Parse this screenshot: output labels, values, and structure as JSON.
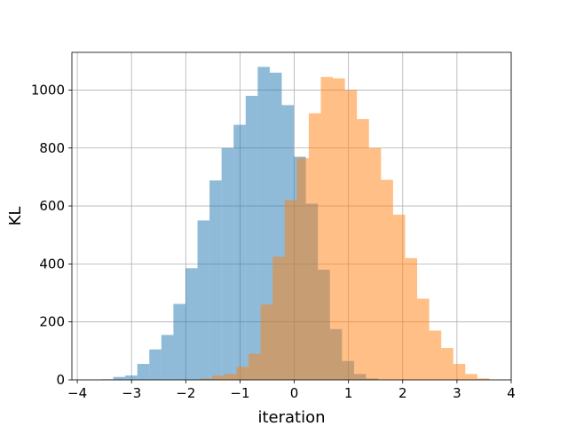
{
  "chart_data": {
    "type": "bar",
    "xlabel": "iteration",
    "ylabel": "KL",
    "xlim": [
      -4.1,
      4.0
    ],
    "ylim": [
      0,
      1130
    ],
    "grid": true,
    "x_ticks": [
      -4,
      -3,
      -2,
      -1,
      0,
      1,
      2,
      3,
      4
    ],
    "y_ticks": [
      0,
      200,
      400,
      600,
      800,
      1000
    ],
    "x_tick_labels": [
      "−4",
      "−3",
      "−2",
      "−1",
      "0",
      "1",
      "2",
      "3",
      "4"
    ],
    "y_tick_labels": [
      "0",
      "200",
      "400",
      "600",
      "800",
      "1000"
    ],
    "series": [
      {
        "color": "#1f77b4",
        "opacity": 0.5,
        "bin_width": 0.222,
        "bin_starts": [
          -3.56,
          -3.338,
          -3.116,
          -2.894,
          -2.672,
          -2.45,
          -2.228,
          -2.006,
          -1.784,
          -1.562,
          -1.34,
          -1.118,
          -0.896,
          -0.674,
          -0.452,
          -0.23,
          -0.008,
          0.214,
          0.436,
          0.658,
          0.88,
          1.102,
          1.324
        ],
        "values": [
          2,
          10,
          15,
          55,
          105,
          155,
          262,
          385,
          550,
          688,
          800,
          880,
          980,
          1080,
          1060,
          948,
          770,
          608,
          380,
          175,
          65,
          20,
          5
        ]
      },
      {
        "color": "#ff7f0e",
        "opacity": 0.5,
        "bin_width": 0.222,
        "bin_starts": [
          -1.73,
          -1.508,
          -1.286,
          -1.064,
          -0.842,
          -0.62,
          -0.398,
          -0.176,
          0.046,
          0.268,
          0.49,
          0.712,
          0.934,
          1.156,
          1.378,
          1.6,
          1.822,
          2.044,
          2.266,
          2.488,
          2.71,
          2.932,
          3.154,
          3.376
        ],
        "values": [
          5,
          15,
          20,
          45,
          90,
          260,
          425,
          620,
          765,
          920,
          1045,
          1040,
          1000,
          900,
          800,
          690,
          570,
          420,
          280,
          170,
          110,
          55,
          20,
          5
        ]
      }
    ]
  }
}
